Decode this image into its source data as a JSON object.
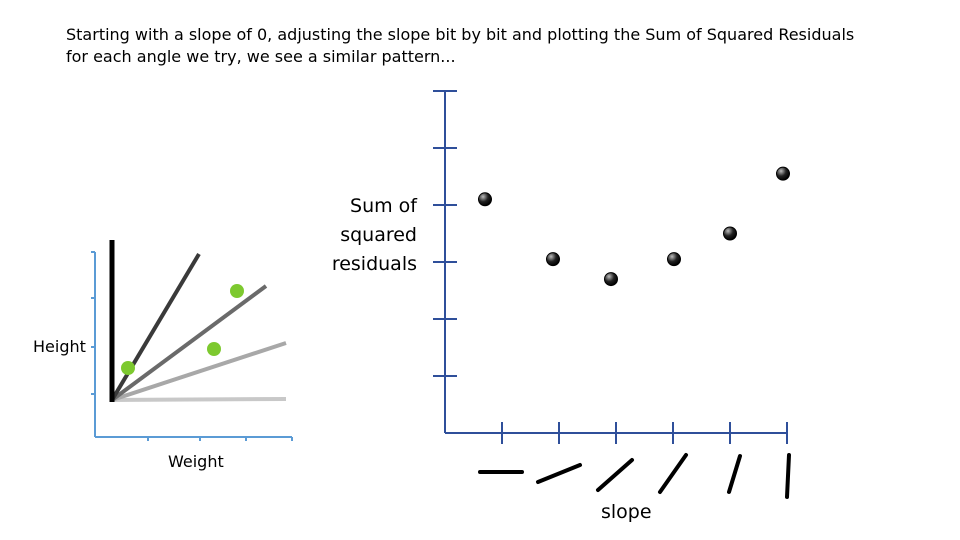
{
  "caption": {
    "line1": "Starting with a slope of 0, adjusting the slope bit by bit and plotting the Sum of Squared Residuals",
    "line2": "for each angle we try, we see a similar pattern..."
  },
  "left_plot": {
    "ylabel": "Height",
    "xlabel": "Weight",
    "dot_color": "#7dc92f",
    "axis_color": "#5b9bd5"
  },
  "right_plot": {
    "ylabel_lines": [
      "Sum of",
      "squared",
      "residuals"
    ],
    "xlabel": "slope",
    "axis_color": "#2f4f9a"
  },
  "chart_data": {
    "type": "scatter",
    "xlabel": "slope",
    "ylabel": "Sum of squared residuals",
    "x": [
      1,
      2,
      3,
      4,
      5,
      6
    ],
    "y": [
      4.1,
      3.05,
      2.7,
      3.05,
      3.5,
      4.55
    ],
    "xlim": [
      0,
      6
    ],
    "ylim": [
      0,
      6
    ],
    "grid": false
  }
}
